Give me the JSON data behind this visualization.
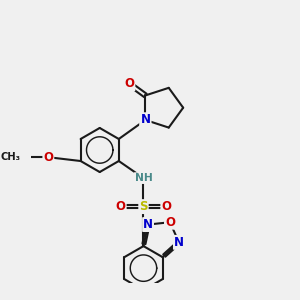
{
  "bg_color": "#f0f0f0",
  "bond_color": "#1a1a1a",
  "bond_width": 1.5,
  "colors": {
    "C": "#1a1a1a",
    "N": "#0000cc",
    "O": "#cc0000",
    "S": "#bbbb00",
    "H": "#4a8a8a"
  },
  "font_size": 8.5,
  "fig_size": [
    3.0,
    3.0
  ],
  "dpi": 100,
  "xlim": [
    -1.5,
    5.5
  ],
  "ylim": [
    -3.5,
    3.5
  ]
}
